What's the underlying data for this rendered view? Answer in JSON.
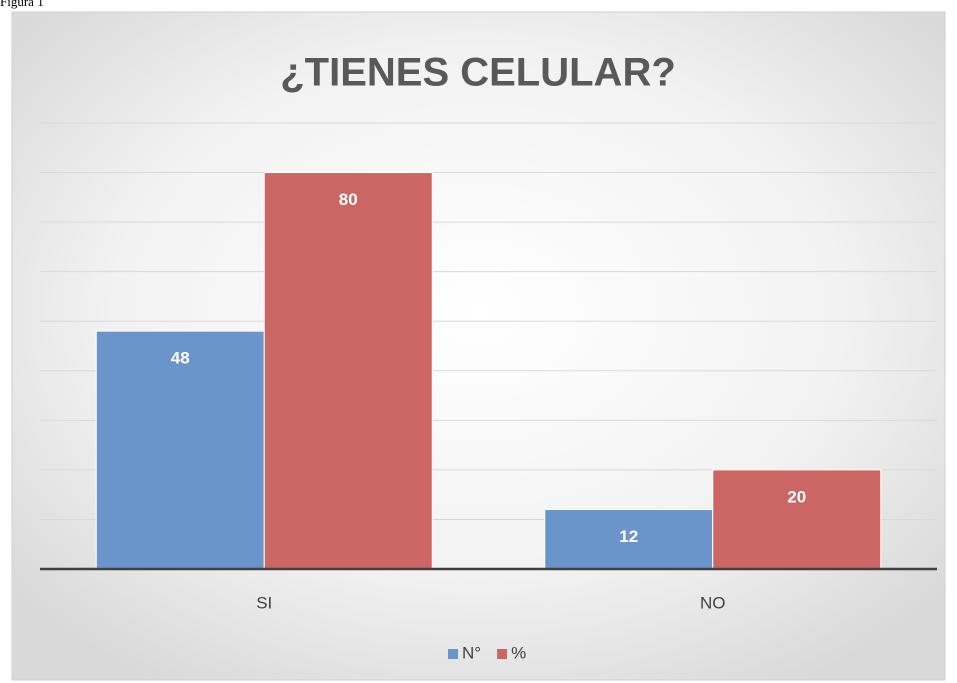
{
  "caption": "Figura 1",
  "chart_data": {
    "type": "bar",
    "title": "¿TIENES CELULAR?",
    "categories": [
      "SI",
      "NO"
    ],
    "series": [
      {
        "name": "N°",
        "color": "#6a95cb",
        "values": [
          48,
          12
        ]
      },
      {
        "name": "%",
        "color": "#cc6665",
        "values": [
          80,
          20
        ]
      }
    ],
    "ylim": [
      0,
      90
    ],
    "yticks": [
      0,
      10,
      20,
      30,
      40,
      50,
      60,
      70,
      80,
      90
    ],
    "grid": true,
    "legend": "bottom"
  }
}
